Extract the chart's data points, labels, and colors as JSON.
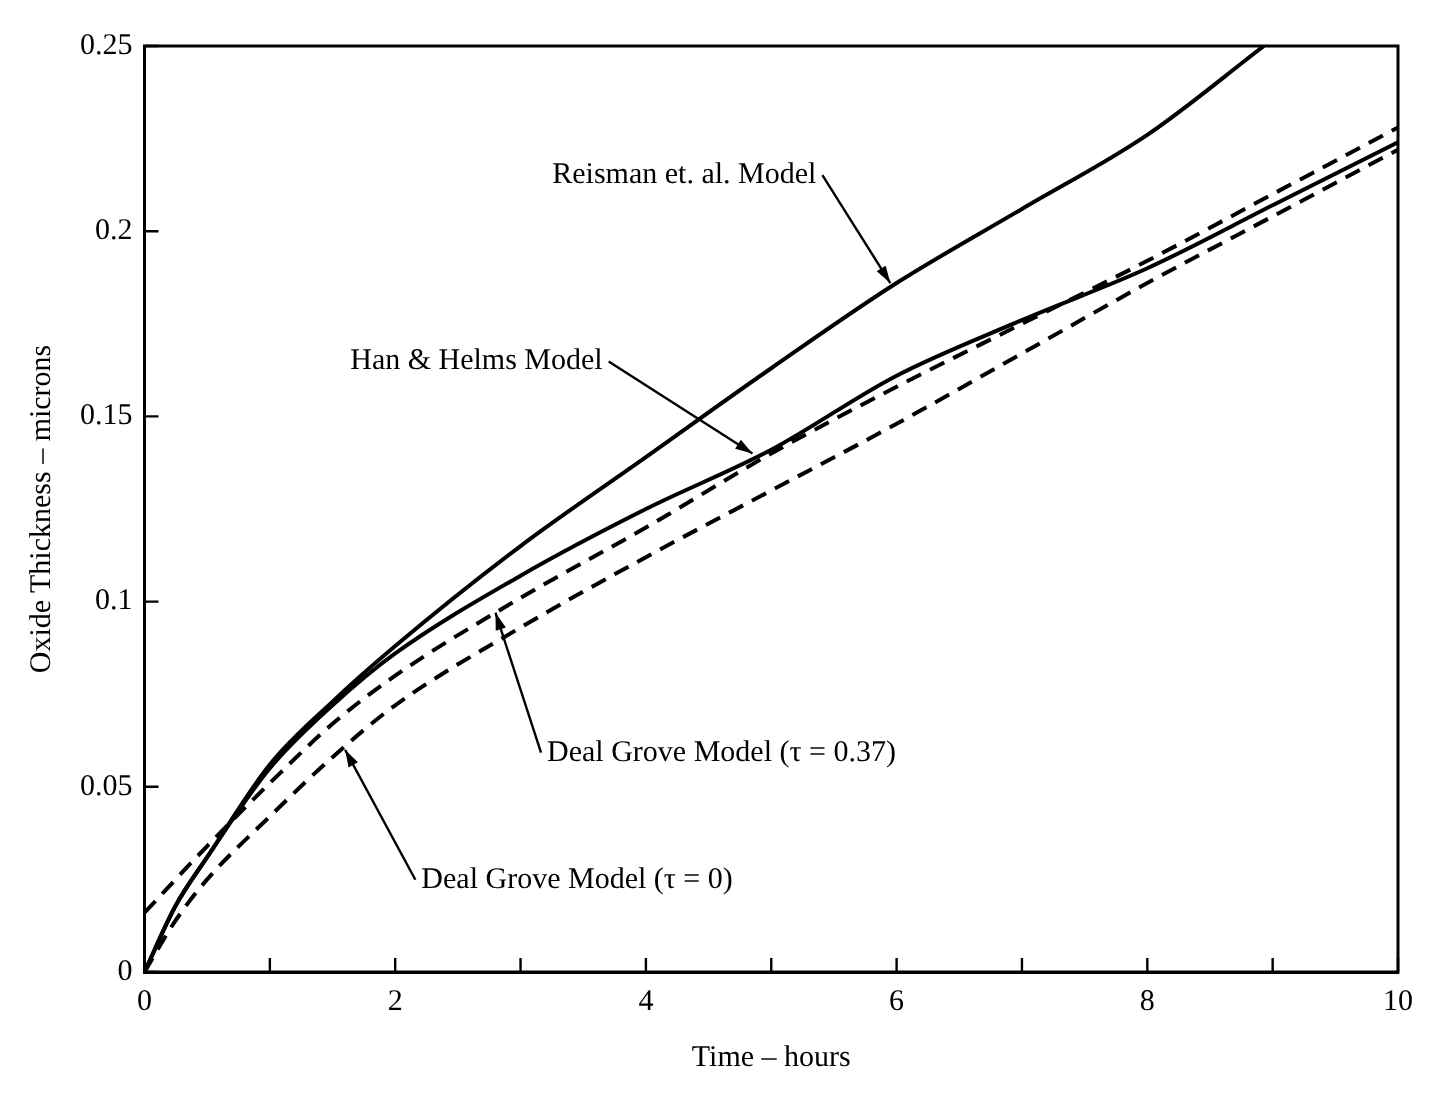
{
  "chart_data": {
    "type": "line",
    "xlabel": "Time – hours",
    "ylabel": "Oxide Thickness – microns",
    "xlim": [
      0,
      10
    ],
    "ylim": [
      0,
      0.25
    ],
    "xticks": [
      0,
      {
        "value": 1,
        "label": null
      },
      2,
      {
        "value": 3,
        "label": null
      },
      4,
      {
        "value": 5,
        "label": null
      },
      6,
      {
        "value": 7,
        "label": null
      },
      8,
      {
        "value": 9,
        "label": null
      },
      10
    ],
    "yticks": [
      0,
      0.05,
      0.1,
      0.15,
      0.2,
      0.25
    ],
    "grid": false,
    "legend": false,
    "marker": "none",
    "annotations": [
      {
        "text": "Reisman et. al. Model",
        "x": 5.95,
        "y": 0.186
      },
      {
        "text": "Han & Helms Model",
        "x": 4.85,
        "y": 0.14
      },
      {
        "text": "Deal Grove Model (τ = 0.37)",
        "x": 2.8,
        "y": 0.097
      },
      {
        "text": "Deal Grove Model (τ = 0)",
        "x": 1.6,
        "y": 0.06
      }
    ],
    "series": [
      {
        "color": "#000000",
        "line_style": "solid",
        "x": [
          0,
          0.25,
          0.5,
          1,
          1.5,
          2,
          3,
          4,
          5,
          6,
          7,
          8,
          8.93
        ],
        "values": [
          0,
          0.018,
          0.031,
          0.056,
          0.073,
          0.088,
          0.115,
          0.139,
          0.163,
          0.186,
          0.206,
          0.226,
          0.25
        ]
      },
      {
        "color": "#000000",
        "line_style": "solid",
        "x": [
          0,
          0.25,
          0.5,
          1,
          1.5,
          2,
          3,
          4,
          5,
          6,
          7,
          8,
          9,
          10
        ],
        "values": [
          0,
          0.018,
          0.031,
          0.055,
          0.072,
          0.086,
          0.107,
          0.125,
          0.141,
          0.161,
          0.176,
          0.19,
          0.207,
          0.224
        ]
      },
      {
        "color": "#000000",
        "line_style": "dashed",
        "x": [
          0,
          0.5,
          1,
          1.5,
          2,
          3,
          4,
          5,
          6,
          7,
          8,
          9,
          10
        ],
        "values": [
          0.016,
          0.034,
          0.051,
          0.067,
          0.08,
          0.101,
          0.12,
          0.14,
          0.158,
          0.175,
          0.192,
          0.21,
          0.228
        ]
      },
      {
        "color": "#000000",
        "line_style": "dashed",
        "x": [
          0,
          0.25,
          0.5,
          1,
          1.5,
          2,
          3,
          4,
          5,
          6,
          7,
          8,
          9,
          10
        ],
        "values": [
          0,
          0.014,
          0.025,
          0.042,
          0.058,
          0.072,
          0.093,
          0.112,
          0.13,
          0.148,
          0.167,
          0.186,
          0.204,
          0.222
        ]
      }
    ]
  }
}
